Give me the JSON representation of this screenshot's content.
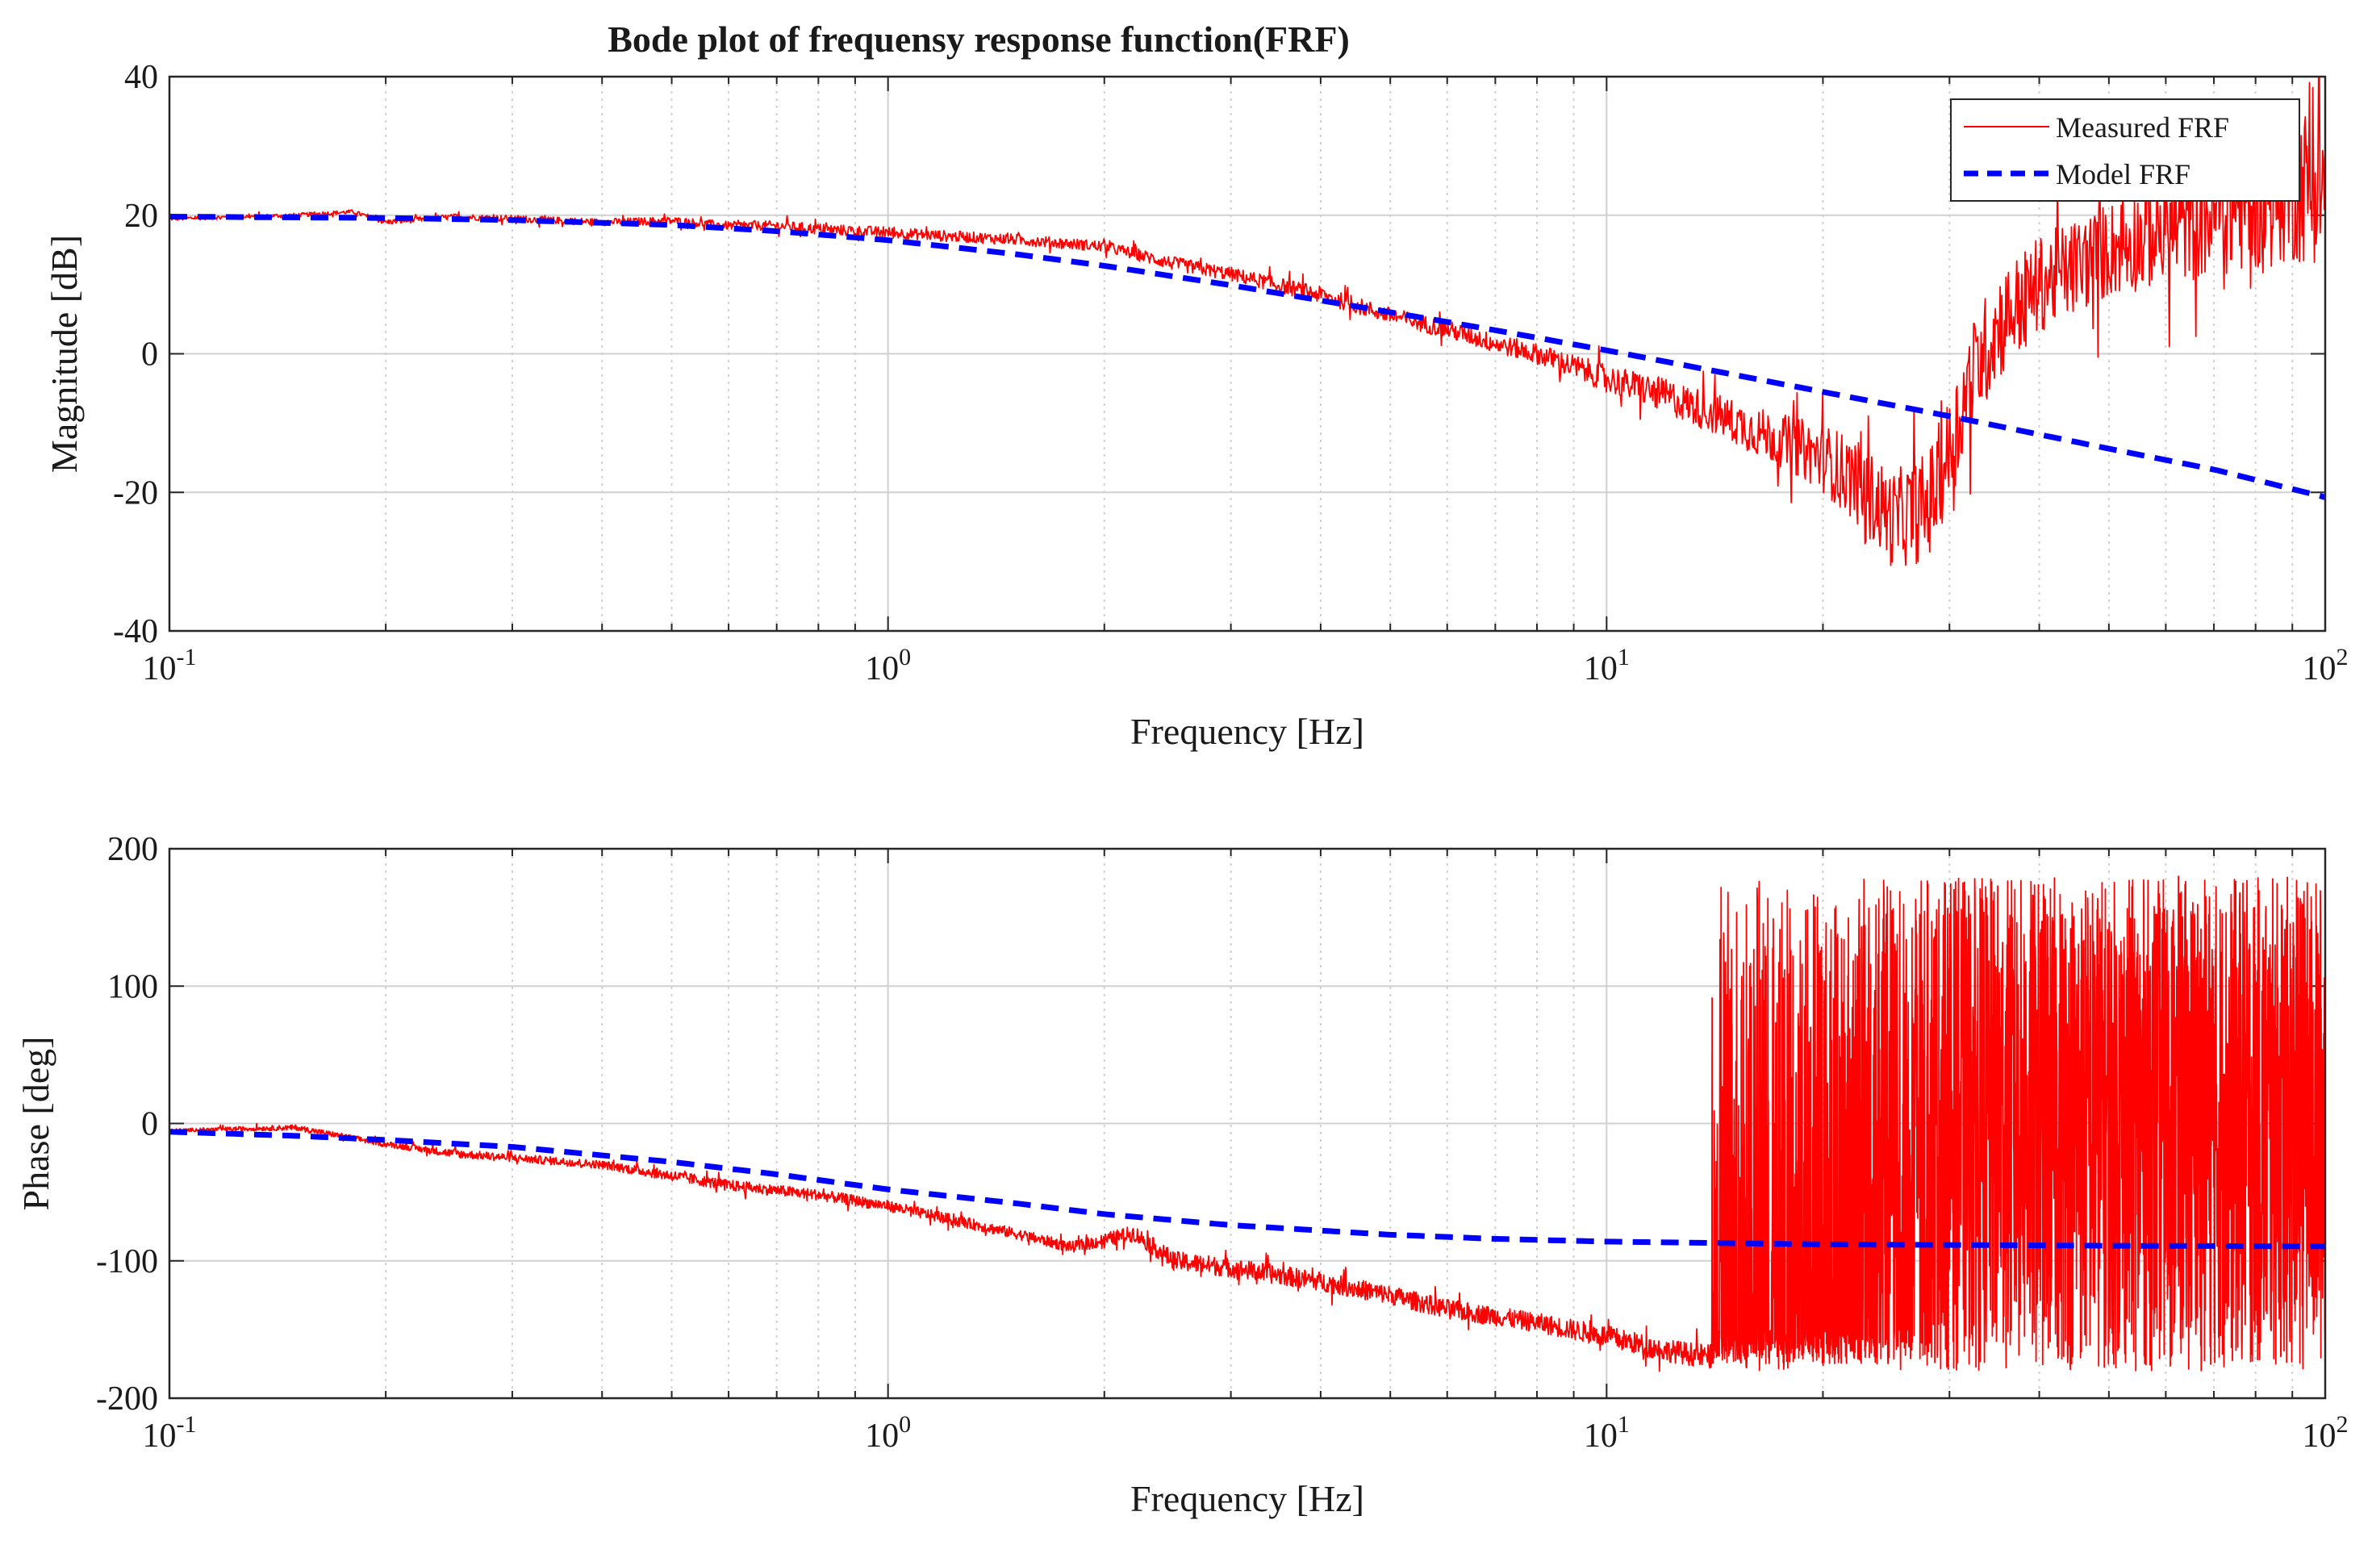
{
  "figure_title": "Bode plot of frequensy response function(FRF)",
  "colors": {
    "measured": "#ff0000",
    "model": "#0000ff",
    "grid": "#d0d0d0",
    "axis": "#262626"
  },
  "chart_data": [
    {
      "type": "line",
      "title": "Bode plot of frequensy response function(FRF)",
      "xlabel": "Frequency [Hz]",
      "ylabel": "Magnitude [dB]",
      "xscale": "log",
      "xlim": [
        0.1,
        100
      ],
      "ylim": [
        -40,
        40
      ],
      "xticks": [
        {
          "value": 0.1,
          "base": "10",
          "exp": "-1"
        },
        {
          "value": 1,
          "base": "10",
          "exp": "0"
        },
        {
          "value": 10,
          "base": "10",
          "exp": "1"
        },
        {
          "value": 100,
          "base": "10",
          "exp": "2"
        }
      ],
      "yticks": [
        {
          "value": 40,
          "label": "40"
        },
        {
          "value": 20,
          "label": "20"
        },
        {
          "value": 0,
          "label": "0"
        },
        {
          "value": -20,
          "label": "-20"
        },
        {
          "value": -40,
          "label": "-40"
        }
      ],
      "grid": true,
      "legend_position": "top-right",
      "legend": [
        "Measured FRF",
        "Model FRF"
      ],
      "series": [
        {
          "name": "Measured FRF",
          "style": "solid",
          "color": "#ff0000",
          "x": [
            0.1,
            0.15,
            0.18,
            0.2,
            0.25,
            0.3,
            0.4,
            0.5,
            0.6,
            0.7,
            0.8,
            1.0,
            1.2,
            1.5,
            2.0,
            2.5,
            3.0,
            4.0,
            5.0,
            6.0,
            7.0,
            8.0,
            10,
            12,
            14,
            16,
            18,
            20,
            22,
            25,
            28,
            30,
            32,
            35,
            40,
            50,
            60,
            70,
            80,
            90,
            100
          ],
          "y": [
            19.5,
            20.0,
            20.5,
            19.0,
            19.8,
            19.5,
            19.0,
            19.2,
            18.5,
            18.5,
            18.0,
            17.5,
            17.0,
            16.5,
            15.5,
            13.0,
            11.5,
            8.5,
            5.5,
            3.5,
            1.5,
            0.0,
            -3.5,
            -6.0,
            -8.5,
            -11.0,
            -13.0,
            -15.0,
            -18.0,
            -24.0,
            -22.0,
            -14.0,
            -4.0,
            4.0,
            10.0,
            15.0,
            18.0,
            20.0,
            22.0,
            24.0,
            25.0
          ],
          "noise_amplitude": [
            0.3,
            0.3,
            0.3,
            0.4,
            0.4,
            0.5,
            0.5,
            0.6,
            0.6,
            0.7,
            0.8,
            0.8,
            0.8,
            0.8,
            0.8,
            1.0,
            1.0,
            1.2,
            1.2,
            1.3,
            1.4,
            1.5,
            2.0,
            2.5,
            3.0,
            3.5,
            4.0,
            5.0,
            6.0,
            7.0,
            8.0,
            8.0,
            8.0,
            8.0,
            7.0,
            7.0,
            8.0,
            9.0,
            10.0,
            11.0,
            12.0
          ]
        },
        {
          "name": "Model FRF",
          "style": "dashed",
          "color": "#0000ff",
          "x": [
            0.1,
            0.2,
            0.3,
            0.5,
            0.7,
            1.0,
            1.5,
            2.0,
            3.0,
            5.0,
            7.0,
            10,
            15,
            20,
            30,
            50,
            70,
            100
          ],
          "y": [
            19.8,
            19.6,
            19.3,
            18.6,
            17.7,
            16.4,
            14.4,
            12.7,
            9.9,
            6.0,
            3.4,
            0.5,
            -3.0,
            -5.5,
            -9.0,
            -13.7,
            -16.7,
            -20.7
          ]
        }
      ]
    },
    {
      "type": "line",
      "title": "",
      "xlabel": "Frequency [Hz]",
      "ylabel": "Phase [deg]",
      "xscale": "log",
      "xlim": [
        0.1,
        100
      ],
      "ylim": [
        -200,
        200
      ],
      "xticks": [
        {
          "value": 0.1,
          "base": "10",
          "exp": "-1"
        },
        {
          "value": 1,
          "base": "10",
          "exp": "0"
        },
        {
          "value": 10,
          "base": "10",
          "exp": "1"
        },
        {
          "value": 100,
          "base": "10",
          "exp": "2"
        }
      ],
      "yticks": [
        {
          "value": 200,
          "label": "200"
        },
        {
          "value": 100,
          "label": "100"
        },
        {
          "value": 0,
          "label": "0"
        },
        {
          "value": -100,
          "label": "-100"
        },
        {
          "value": -200,
          "label": "-200"
        }
      ],
      "grid": true,
      "series": [
        {
          "name": "Measured FRF",
          "style": "solid",
          "color": "#ff0000",
          "x": [
            0.1,
            0.15,
            0.2,
            0.25,
            0.3,
            0.4,
            0.5,
            0.6,
            0.8,
            1.0,
            1.5,
            1.8,
            2.0,
            2.2,
            2.5,
            3.0,
            4.0,
            5.0,
            6.0,
            8.0,
            10,
            12,
            14
          ],
          "y": [
            -5.0,
            -3.0,
            -15.0,
            -22.0,
            -25.0,
            -30.0,
            -38.0,
            -45.0,
            -52.0,
            -60.0,
            -80.0,
            -90.0,
            -85.0,
            -80.0,
            -100.0,
            -105.0,
            -115.0,
            -125.0,
            -135.0,
            -145.0,
            -155.0,
            -165.0,
            -170.0
          ],
          "noise_amplitude": [
            1,
            2,
            2,
            3,
            3,
            3,
            4,
            4,
            4,
            4,
            4,
            4,
            5,
            6,
            7,
            7,
            7,
            7,
            7,
            7,
            8,
            8,
            9
          ],
          "wrapped_region": {
            "from_hz": 14,
            "to_hz": 100,
            "min": -180,
            "max": 180
          }
        },
        {
          "name": "Model FRF",
          "style": "dashed",
          "color": "#0000ff",
          "x": [
            0.1,
            0.15,
            0.2,
            0.3,
            0.5,
            0.7,
            1.0,
            1.5,
            2.0,
            3.0,
            5.0,
            7.0,
            10,
            20,
            50,
            100
          ],
          "y": [
            -6.0,
            -9.0,
            -12.0,
            -17.0,
            -28.0,
            -37.0,
            -48.0,
            -58.0,
            -66.0,
            -74.0,
            -81.0,
            -84.0,
            -86.0,
            -88.0,
            -89.0,
            -89.5
          ]
        }
      ]
    }
  ]
}
